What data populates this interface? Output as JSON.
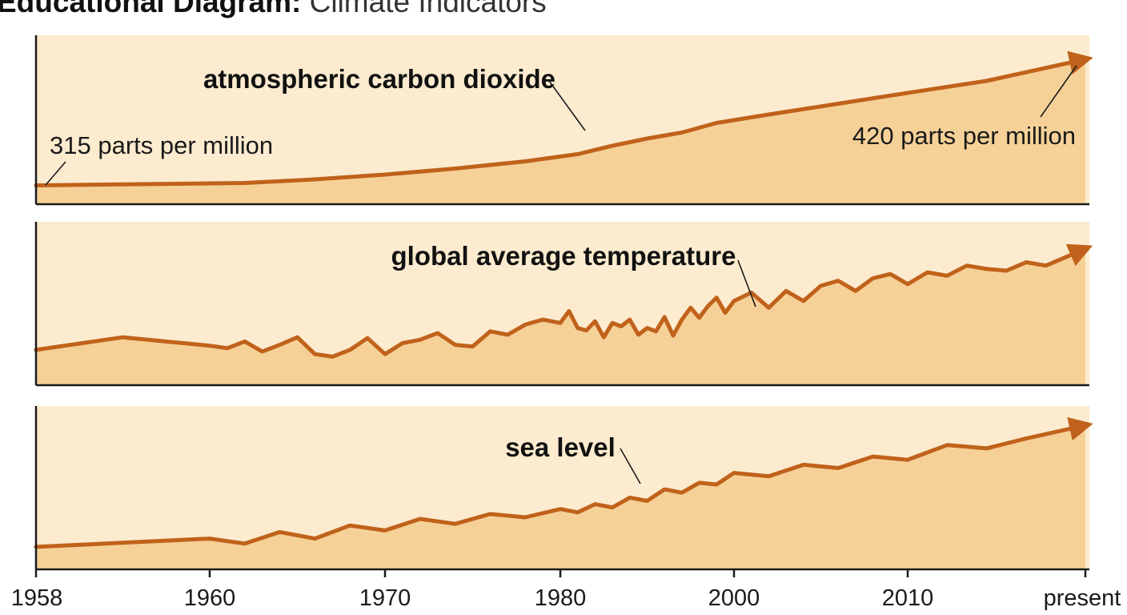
{
  "title": {
    "bold": "Educational Diagram:",
    "light": "Climate Indicators"
  },
  "colors": {
    "line": "#c0621b",
    "area": "#f6d197",
    "background": "#fcebcf"
  },
  "chart_data": [
    {
      "type": "line",
      "series": [
        {
          "name": "atmospheric carbon dioxide",
          "unit": "parts per million"
        }
      ],
      "x": [
        1958,
        1962,
        1966,
        1970,
        1974,
        1978,
        1982,
        1986,
        1990,
        1994,
        1998,
        2002,
        2006,
        2010,
        2014,
        2019
      ],
      "y": [
        315,
        317,
        320,
        324,
        329,
        335,
        341,
        348,
        354,
        359,
        367,
        374,
        383,
        392,
        402,
        420
      ],
      "annotations": [
        "315 parts per million",
        "420 parts per million"
      ],
      "trend_arrow": true
    },
    {
      "type": "line",
      "series": [
        {
          "name": "global average temperature"
        }
      ],
      "x": [
        1958,
        1959,
        1960,
        1961,
        1962,
        1963,
        1964,
        1965,
        1966,
        1967,
        1968,
        1969,
        1970,
        1971,
        1972,
        1973,
        1974,
        1975,
        1976,
        1977,
        1978,
        1979,
        1980,
        1981,
        1982,
        1983,
        1984,
        1985,
        1986,
        1987,
        1988,
        1989,
        1990,
        1991,
        1992,
        1993,
        1994,
        1995,
        1996,
        1997,
        1998,
        1999,
        2000,
        2001,
        2002,
        2003,
        2004,
        2005,
        2006,
        2007,
        2008,
        2009,
        2010,
        2011,
        2012,
        2013,
        2014,
        2015,
        2016,
        2017,
        2018,
        2019
      ],
      "y": [
        0.2,
        0.35,
        0.25,
        0.22,
        0.3,
        0.18,
        0.26,
        0.35,
        0.15,
        0.12,
        0.2,
        0.34,
        0.15,
        0.28,
        0.32,
        0.4,
        0.26,
        0.24,
        0.42,
        0.38,
        0.5,
        0.56,
        0.52,
        0.66,
        0.46,
        0.43,
        0.54,
        0.35,
        0.52,
        0.48,
        0.56,
        0.38,
        0.46,
        0.42,
        0.59,
        0.37,
        0.56,
        0.7,
        0.58,
        0.72,
        0.82,
        0.64,
        0.78,
        0.88,
        0.7,
        0.9,
        0.78,
        0.96,
        1.02,
        0.9,
        1.05,
        1.1,
        0.98,
        1.12,
        1.08,
        1.2,
        1.16,
        1.14,
        1.24,
        1.2,
        1.3,
        1.4
      ],
      "trend_arrow": true
    },
    {
      "type": "line",
      "series": [
        {
          "name": "sea level"
        }
      ],
      "x": [
        1958,
        1960,
        1962,
        1964,
        1966,
        1968,
        1970,
        1972,
        1974,
        1976,
        1978,
        1980,
        1982,
        1984,
        1986,
        1988,
        1990,
        1992,
        1994,
        1996,
        1998,
        2000,
        2002,
        2004,
        2006,
        2008,
        2010,
        2012,
        2014,
        2016,
        2019
      ],
      "y": [
        0,
        10,
        4,
        18,
        10,
        26,
        20,
        34,
        28,
        40,
        36,
        46,
        42,
        52,
        48,
        60,
        56,
        70,
        66,
        78,
        76,
        90,
        86,
        100,
        96,
        110,
        106,
        124,
        120,
        132,
        148
      ],
      "trend_arrow": true
    }
  ],
  "x_axis": {
    "ticks": [
      {
        "year": 1958,
        "label": "1958"
      },
      {
        "year": 1960,
        "label": "1960"
      },
      {
        "year": 1970,
        "label": "1970"
      },
      {
        "year": 1980,
        "label": "1980"
      },
      {
        "year": 2000,
        "label": "2000"
      },
      {
        "year": 2010,
        "label": "2010"
      },
      {
        "year": 2019,
        "label": "present"
      }
    ]
  }
}
